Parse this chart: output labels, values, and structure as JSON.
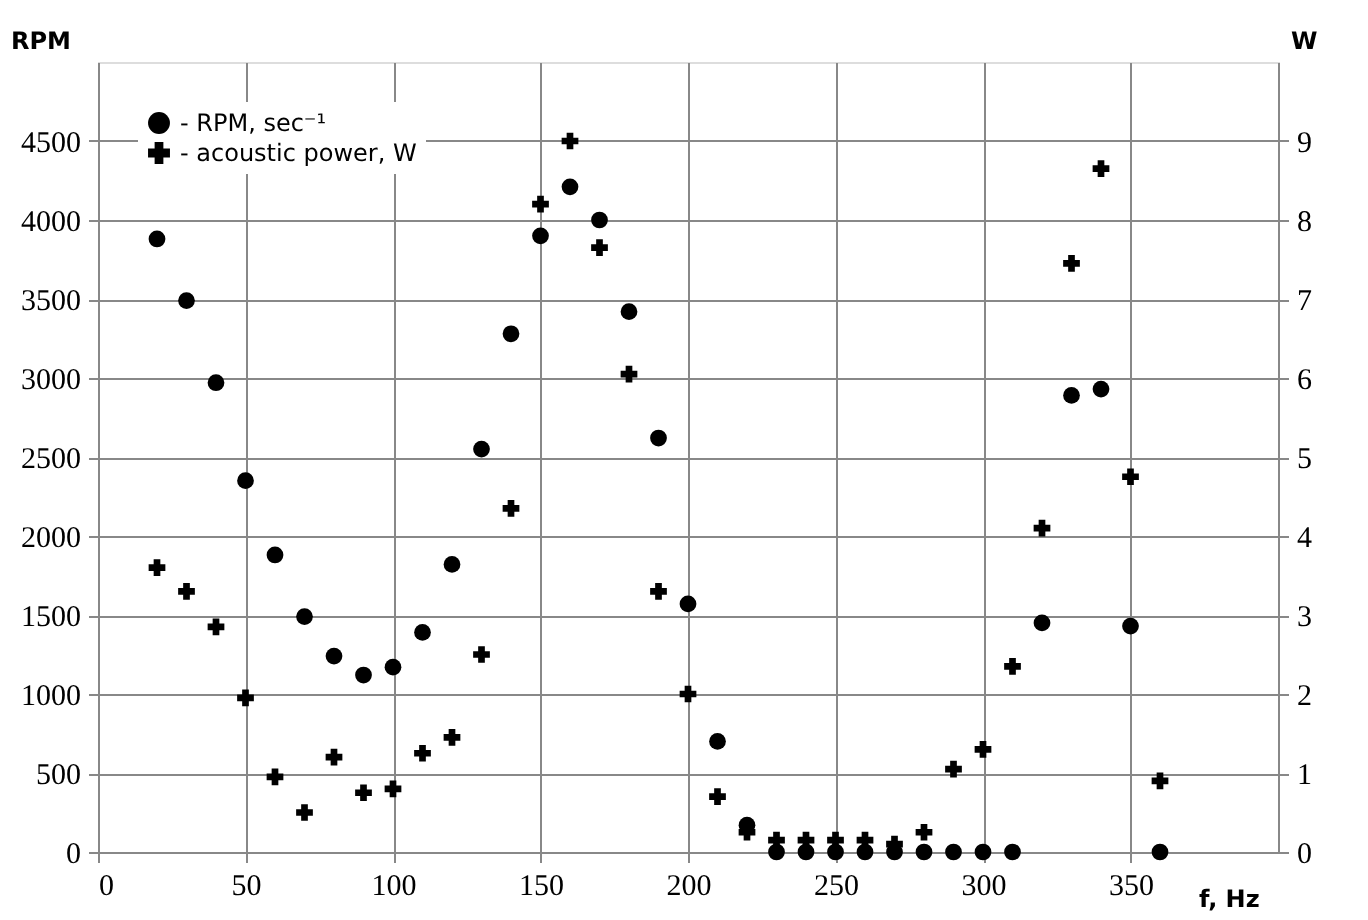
{
  "chart_data": {
    "type": "scatter",
    "xlabel": "f, Hz",
    "ylabel": "RPM",
    "y2label": "W",
    "x": [
      20,
      30,
      40,
      50,
      60,
      70,
      80,
      90,
      100,
      110,
      120,
      130,
      140,
      150,
      160,
      170,
      180,
      190,
      200,
      210,
      220,
      230,
      240,
      250,
      260,
      270,
      280,
      290,
      300,
      310,
      320,
      330,
      340,
      350,
      360
    ],
    "series": [
      {
        "name": "- RPM, sec⁻¹",
        "color": "#000000",
        "marker": "circle",
        "values": [
          3880,
          3490,
          2970,
          2350,
          1880,
          1490,
          1240,
          1120,
          1170,
          1390,
          1820,
          2550,
          3280,
          3900,
          4210,
          4000,
          3420,
          2620,
          1570,
          700,
          170,
          0,
          0,
          0,
          0,
          0,
          0,
          0,
          0,
          0,
          1450,
          2890,
          2930,
          1430,
          0
        ]
      },
      {
        "name": "- acoustic power, W",
        "color": "#000000",
        "marker": "cross",
        "axis": "y2",
        "values": [
          3.6,
          3.3,
          2.85,
          1.95,
          0.95,
          0.5,
          1.2,
          0.75,
          0.8,
          1.25,
          1.45,
          2.5,
          4.35,
          8.2,
          9.0,
          7.65,
          6.05,
          3.3,
          2.0,
          0.7,
          0.25,
          0.15,
          0.15,
          0.15,
          0.15,
          0.1,
          0.25,
          1.05,
          1.3,
          2.35,
          4.1,
          7.45,
          8.65,
          4.75,
          0.9
        ]
      }
    ],
    "xlim": [
      0,
      400
    ],
    "xticks": [
      0,
      50,
      100,
      150,
      200,
      250,
      300,
      350
    ],
    "ylim": [
      0,
      5000
    ],
    "yticks": [
      0,
      500,
      1000,
      1500,
      2000,
      2500,
      3000,
      3500,
      4000,
      4500
    ],
    "y2lim": [
      0,
      10
    ],
    "y2ticks": [
      0,
      1,
      2,
      3,
      4,
      5,
      6,
      7,
      8,
      9
    ],
    "grid": true,
    "legend": "top left"
  }
}
